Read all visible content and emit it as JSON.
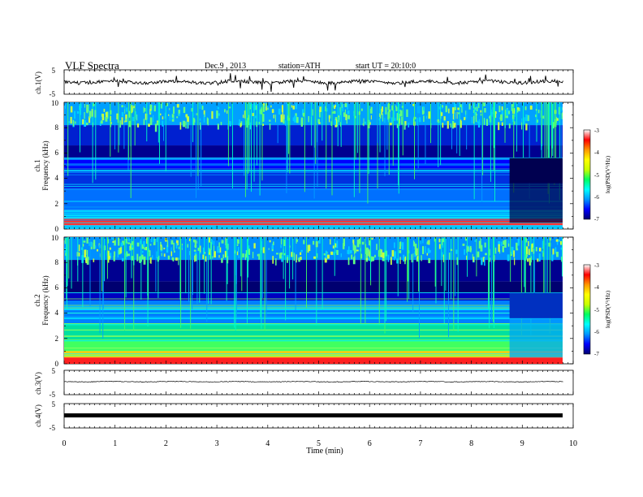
{
  "header": {
    "title": "VLF  Spectra",
    "date": "Dec.9  , 2013",
    "station": "station=ATH",
    "start": "start  UT  =   20:10:0"
  },
  "chart_data": {
    "type": "heatmap",
    "x": {
      "label": "Time  (min)",
      "range": [
        0,
        10
      ],
      "ticks": [
        "0",
        "1",
        "2",
        "3",
        "4",
        "5",
        "6",
        "7",
        "8",
        "9",
        "10"
      ],
      "data_end_min": 9.8,
      "transition_min": 8.75
    },
    "panels": [
      {
        "id": "ch1_wave",
        "type": "line",
        "ylabel": "ch.1(V)",
        "yticks": [
          "5",
          "-5"
        ],
        "ylim": [
          -5,
          5
        ]
      },
      {
        "id": "ch1_spec",
        "type": "heatmap",
        "ylabel_top": "ch.1",
        "ylabel": "Frequency  (kHz)",
        "yticks": [
          "0",
          "2",
          "4",
          "6",
          "8",
          "10"
        ],
        "ylim": [
          0,
          10
        ]
      },
      {
        "id": "ch2_spec",
        "type": "heatmap",
        "ylabel_top": "ch.2",
        "ylabel": "Frequency  (kHz)",
        "yticks": [
          "0",
          "2",
          "4",
          "6",
          "8",
          "10"
        ],
        "ylim": [
          0,
          10
        ]
      },
      {
        "id": "ch3_wave",
        "type": "line",
        "ylabel": "ch.3(V)",
        "yticks": [
          "5",
          "-5"
        ],
        "ylim": [
          -5,
          5
        ]
      },
      {
        "id": "ch4_wave",
        "type": "line",
        "ylabel": "ch.4(V)",
        "yticks": [
          "5",
          "-5"
        ],
        "ylim": [
          -5,
          5
        ]
      }
    ],
    "colorbar": {
      "ticks": [
        "-3",
        "-4",
        "-5",
        "-6",
        "-7"
      ],
      "label": "log(PSD(V²/Hz)",
      "range": [
        -7,
        -3
      ],
      "colors": [
        "#000070",
        "#0000ff",
        "#0096ff",
        "#00ffff",
        "#00ff60",
        "#c8ff00",
        "#ffff00",
        "#ff9600",
        "#ff0000",
        "#ffffff"
      ]
    }
  }
}
